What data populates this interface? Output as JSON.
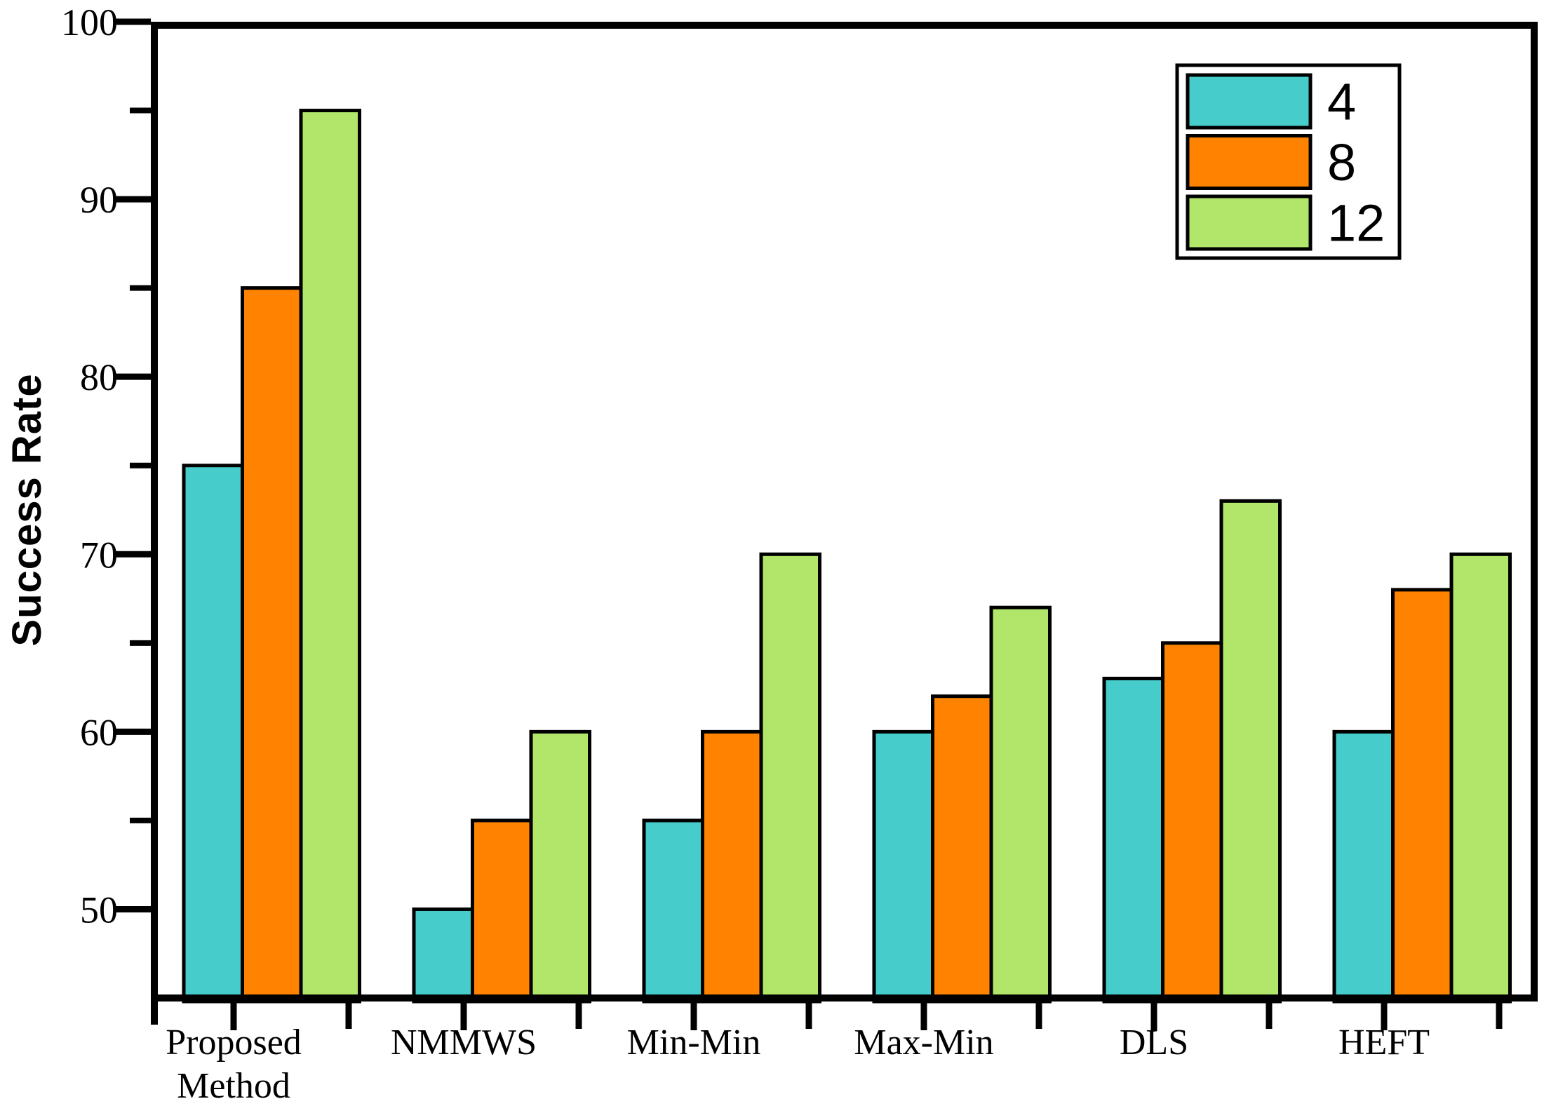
{
  "chart_data": {
    "type": "bar",
    "title": "",
    "ylabel": "Success Rate",
    "xlabel": "",
    "categories": [
      "Proposed Method",
      "NMMWS",
      "Min-Min",
      "Max-Min",
      "DLS",
      "HEFT"
    ],
    "series": [
      {
        "name": "4",
        "color": "#45CCCB",
        "values": [
          75,
          50,
          55,
          60,
          63,
          60
        ]
      },
      {
        "name": "8",
        "color": "#FF8300",
        "values": [
          85,
          55,
          60,
          62,
          65,
          68
        ]
      },
      {
        "name": "12",
        "color": "#B2E66A",
        "values": [
          95,
          60,
          70,
          67,
          73,
          70
        ]
      }
    ],
    "ylim": [
      45,
      100
    ],
    "yticks": [
      50,
      60,
      70,
      80,
      90,
      100
    ],
    "yminorticks": [
      55,
      65,
      75,
      85,
      95
    ],
    "grid": false,
    "legend": {
      "position": "top-right",
      "entries": [
        "4",
        "8",
        "12"
      ]
    },
    "axis_color": "#000000",
    "background": "#FFFFFF"
  }
}
